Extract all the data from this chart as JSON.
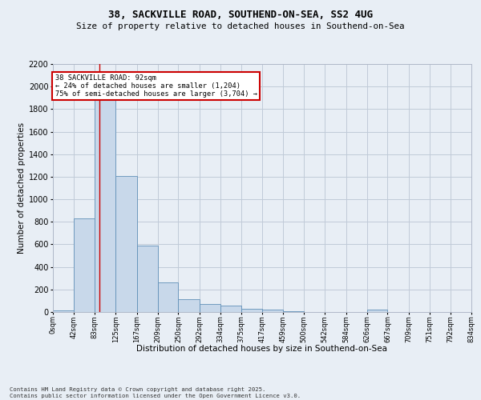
{
  "title_line1": "38, SACKVILLE ROAD, SOUTHEND-ON-SEA, SS2 4UG",
  "title_line2": "Size of property relative to detached houses in Southend-on-Sea",
  "xlabel": "Distribution of detached houses by size in Southend-on-Sea",
  "ylabel": "Number of detached properties",
  "footnote": "Contains HM Land Registry data © Crown copyright and database right 2025.\nContains public sector information licensed under the Open Government Licence v3.0.",
  "annotation_title": "38 SACKVILLE ROAD: 92sqm",
  "annotation_line2": "← 24% of detached houses are smaller (1,204)",
  "annotation_line3": "75% of semi-detached houses are larger (3,704) →",
  "property_size": 92,
  "bar_color": "#c8d8ea",
  "bar_edge_color": "#6090b8",
  "vline_color": "#cc0000",
  "annotation_box_color": "#cc0000",
  "grid_color": "#c0cad8",
  "bg_color": "#e8eef5",
  "bins": [
    0,
    42,
    83,
    125,
    167,
    209,
    250,
    292,
    334,
    375,
    417,
    459,
    500,
    542,
    584,
    626,
    667,
    709,
    751,
    792,
    834
  ],
  "bin_labels": [
    "0sqm",
    "42sqm",
    "83sqm",
    "125sqm",
    "167sqm",
    "209sqm",
    "250sqm",
    "292sqm",
    "334sqm",
    "375sqm",
    "417sqm",
    "459sqm",
    "500sqm",
    "542sqm",
    "584sqm",
    "626sqm",
    "667sqm",
    "709sqm",
    "751sqm",
    "792sqm",
    "834sqm"
  ],
  "bar_values": [
    15,
    830,
    1920,
    1210,
    590,
    260,
    115,
    70,
    55,
    30,
    20,
    5,
    0,
    0,
    0,
    20,
    0,
    0,
    0,
    0
  ],
  "ylim": [
    0,
    2200
  ],
  "yticks": [
    0,
    200,
    400,
    600,
    800,
    1000,
    1200,
    1400,
    1600,
    1800,
    2000,
    2200
  ]
}
